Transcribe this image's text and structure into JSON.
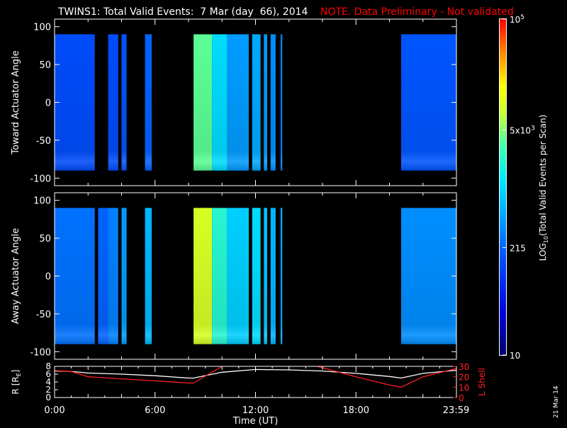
{
  "title": {
    "main": "TWINS1: Total Valid Events:  7 Mar (day  66), 2014",
    "note": "NOTE. Data Preliminary - Not validated"
  },
  "date_stamp": "21 Mar 14",
  "colors": {
    "background": "#000000",
    "note": "#ff0000",
    "r_line": "#ffffff",
    "lshell_line": "#ff2020"
  },
  "chart_data": [
    {
      "type": "heatmap",
      "ylabel": "Toward Actuator Angle",
      "ylim": [
        -110,
        110
      ],
      "ytick_labels": [
        "100",
        "50",
        "0",
        "-50",
        "-100"
      ],
      "ytick_values": [
        100,
        50,
        0,
        -50,
        -100
      ],
      "data_y_range": [
        -90,
        90
      ],
      "segments": [
        {
          "x": [
            0.0,
            2.4
          ],
          "level": 0.28
        },
        {
          "x": [
            3.2,
            3.8
          ],
          "level": 0.28
        },
        {
          "x": [
            4.0,
            4.3
          ],
          "level": 0.3
        },
        {
          "x": [
            5.4,
            5.8
          ],
          "level": 0.32
        },
        {
          "x": [
            8.3,
            9.4
          ],
          "level": 0.64
        },
        {
          "x": [
            9.4,
            10.3
          ],
          "level": 0.5
        },
        {
          "x": [
            10.3,
            11.6
          ],
          "level": 0.4
        },
        {
          "x": [
            11.8,
            12.3
          ],
          "level": 0.42
        },
        {
          "x": [
            12.5,
            12.7
          ],
          "level": 0.4
        },
        {
          "x": [
            12.9,
            13.2
          ],
          "level": 0.38
        },
        {
          "x": [
            13.5,
            13.6
          ],
          "level": 0.36
        },
        {
          "x": [
            20.7,
            24.0
          ],
          "level": 0.3
        }
      ]
    },
    {
      "type": "heatmap",
      "ylabel": "Away Actuator Angle",
      "ylim": [
        -110,
        110
      ],
      "ytick_labels": [
        "100",
        "50",
        "0",
        "-50",
        "-100"
      ],
      "ytick_values": [
        100,
        50,
        0,
        -50,
        -100
      ],
      "data_y_range": [
        -90,
        90
      ],
      "segments": [
        {
          "x": [
            0.0,
            2.4
          ],
          "level": 0.34
        },
        {
          "x": [
            2.6,
            3.2
          ],
          "level": 0.32
        },
        {
          "x": [
            3.2,
            3.8
          ],
          "level": 0.36
        },
        {
          "x": [
            4.0,
            4.3
          ],
          "level": 0.4
        },
        {
          "x": [
            5.4,
            5.8
          ],
          "level": 0.44
        },
        {
          "x": [
            8.3,
            9.4
          ],
          "level": 0.74
        },
        {
          "x": [
            9.4,
            10.3
          ],
          "level": 0.58
        },
        {
          "x": [
            10.3,
            11.6
          ],
          "level": 0.48
        },
        {
          "x": [
            11.8,
            12.3
          ],
          "level": 0.5
        },
        {
          "x": [
            12.5,
            12.7
          ],
          "level": 0.46
        },
        {
          "x": [
            12.9,
            13.2
          ],
          "level": 0.44
        },
        {
          "x": [
            13.5,
            13.6
          ],
          "level": 0.42
        },
        {
          "x": [
            20.7,
            24.0
          ],
          "level": 0.38
        }
      ]
    },
    {
      "type": "line",
      "ylabel": "R [R",
      "ylabel_sub": "E",
      "ylabel_close": "]",
      "ylim": [
        0,
        8
      ],
      "ytick_labels": [
        "8",
        "6",
        "4",
        "2",
        "0"
      ],
      "ytick_values": [
        8,
        6,
        4,
        2,
        0
      ],
      "y2label": "L Shell",
      "y2lim": [
        0,
        30
      ],
      "y2tick_labels": [
        "30",
        "20",
        "10",
        "0"
      ],
      "y2tick_values": [
        30,
        20,
        10,
        0
      ],
      "xlabel": "Time (UT)",
      "xlim": [
        0,
        24
      ],
      "xtick_labels": [
        "0:00",
        "6:00",
        "12:00",
        "18:00",
        "23:59"
      ],
      "xtick_values": [
        0,
        6,
        12,
        18,
        23.98
      ],
      "series": [
        {
          "axis": "left",
          "x": [
            0,
            1,
            2,
            4,
            6,
            8,
            8.3,
            10,
            12,
            14,
            16,
            18,
            20,
            20.7,
            22,
            24
          ],
          "values": [
            6.8,
            6.7,
            6.3,
            6.0,
            5.6,
            5.0,
            5.0,
            6.5,
            7.2,
            7.1,
            6.8,
            6.2,
            5.4,
            5.0,
            6.2,
            7.0
          ]
        },
        {
          "axis": "right",
          "x": [
            0,
            1,
            2,
            4,
            6,
            8,
            8.3,
            10,
            10.3,
            15.0,
            18,
            20,
            20.7,
            22,
            24
          ],
          "values": [
            26,
            25,
            20,
            18,
            16,
            14,
            14,
            30,
            33,
            33,
            20,
            12,
            10,
            20,
            28
          ]
        }
      ]
    },
    {
      "type": "heatmap",
      "role": "colorbar",
      "ylabel": "LOG",
      "ylabel_sub": "10",
      "ylabel_rest": "(Total Valid  Events per Scan)",
      "tick_labels": [
        "10",
        "215",
        "5x10",
        "10"
      ],
      "tick_sups": [
        "",
        "",
        "3",
        "5"
      ],
      "tick_positions": [
        0,
        0.32,
        0.67,
        1
      ]
    }
  ]
}
